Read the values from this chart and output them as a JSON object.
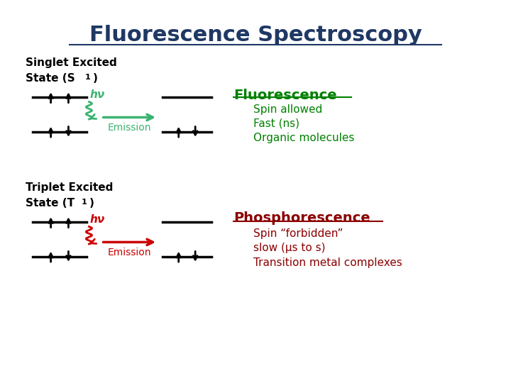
{
  "title": "Fluorescence Spectroscopy",
  "title_color": "#1F3864",
  "title_fontsize": 22,
  "bg_color": "#ffffff",
  "fluorescence_title": "Fluorescence",
  "fluorescence_lines": [
    "Spin allowed",
    "Fast (ns)",
    "Organic molecules"
  ],
  "fluorescence_color": "#008000",
  "phosphorescence_title": "Phosphorescence",
  "phosphorescence_lines": [
    "Spin “forbidden”",
    "slow (μs to s)",
    "Transition metal complexes"
  ],
  "phosphorescence_color": "#8B0000",
  "hn_label": "hν",
  "emission_label": "Emission",
  "green_color": "#3CB371",
  "red_color": "#CC0000"
}
